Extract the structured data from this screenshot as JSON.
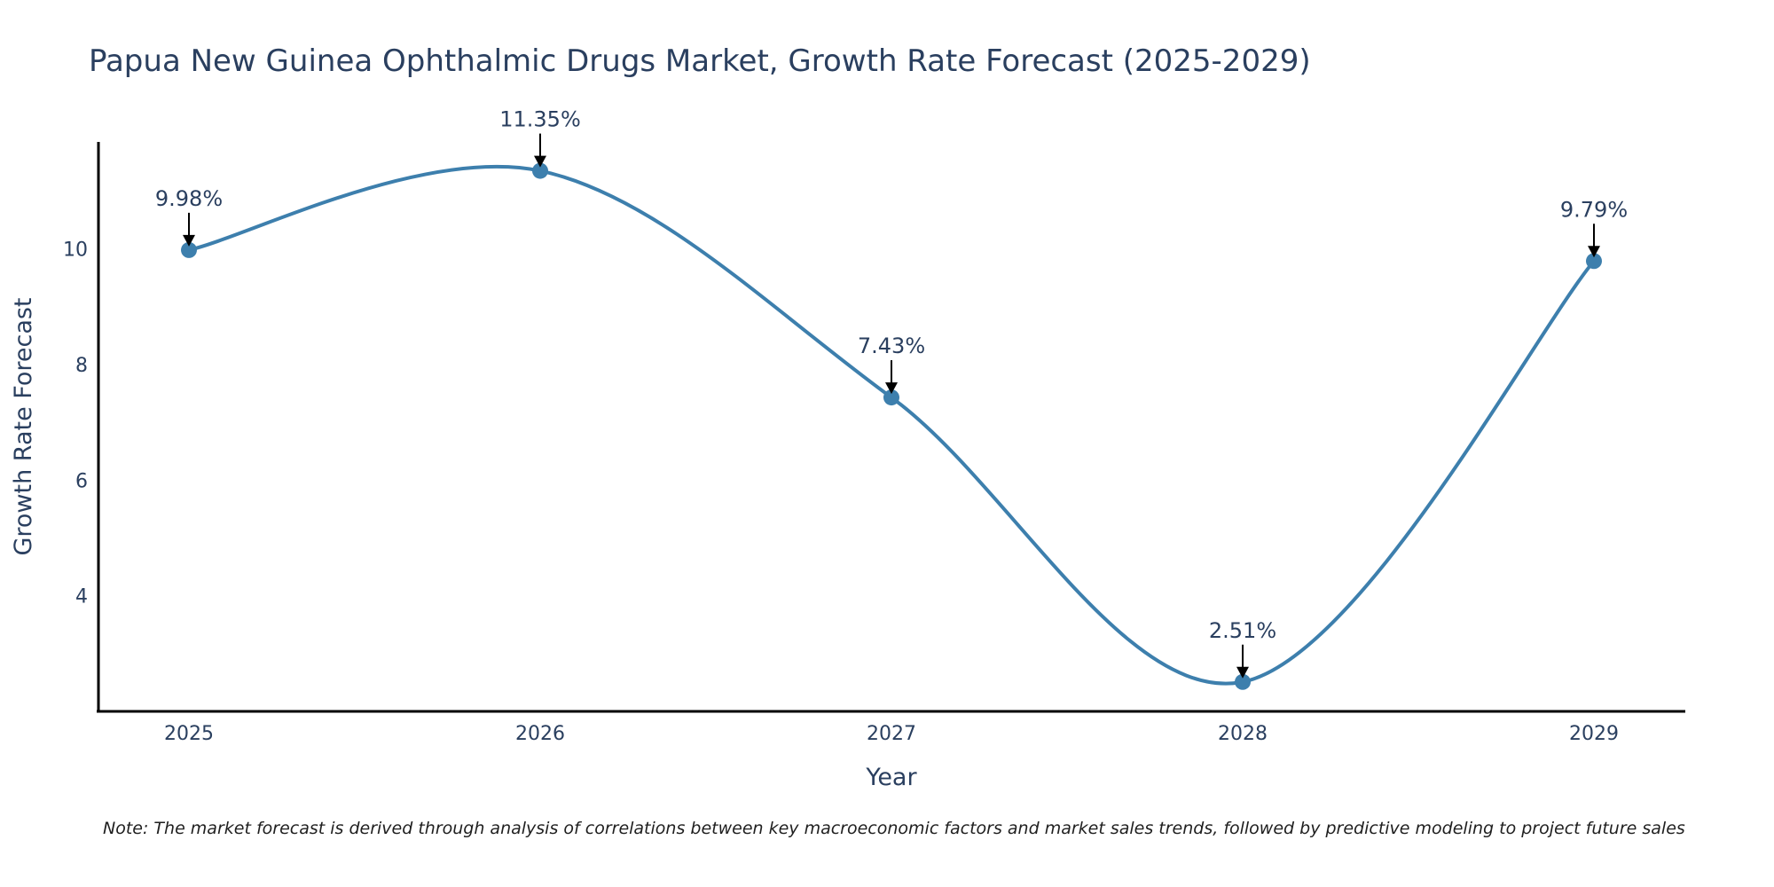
{
  "chart_data": {
    "type": "line",
    "title": "Papua New Guinea Ophthalmic Drugs Market, Growth Rate Forecast (2025-2029)",
    "xlabel": "Year",
    "ylabel": "Growth Rate Forecast",
    "categories": [
      "2025",
      "2026",
      "2027",
      "2028",
      "2029"
    ],
    "series": [
      {
        "name": "Growth Rate Forecast",
        "values": [
          9.98,
          11.35,
          7.43,
          2.51,
          9.79
        ],
        "labels": [
          "9.98%",
          "11.35%",
          "7.43%",
          "2.51%",
          "9.79%"
        ]
      }
    ],
    "ylim": [
      2.0,
      11.85
    ],
    "yticks": [
      4,
      6,
      8,
      10
    ],
    "line_color": "#3d7fad",
    "marker_color": "#3d7fad",
    "arrow_color": "#000000",
    "grid": false,
    "line_shape": "spline",
    "note": "Note: The market forecast is derived through analysis of correlations between key macroeconomic factors and market sales trends, followed by predictive modeling to project future sales"
  }
}
